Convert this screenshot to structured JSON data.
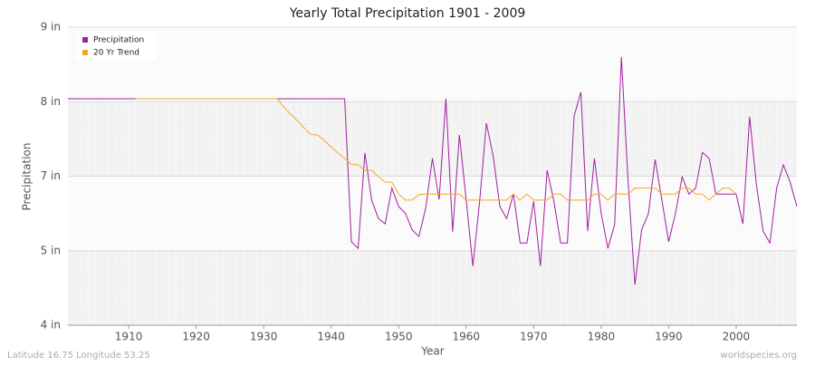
{
  "chart_data": {
    "type": "line",
    "title": "Yearly Total Precipitation 1901 - 2009",
    "x_label": "Year",
    "y_label": "Precipitation",
    "footer_left": "Latitude 16.75 Longitude 53.25",
    "footer_right": "worldspecies.org",
    "x": [
      1901,
      1902,
      1903,
      1904,
      1905,
      1906,
      1907,
      1908,
      1909,
      1910,
      1911,
      1912,
      1913,
      1914,
      1915,
      1916,
      1917,
      1918,
      1919,
      1920,
      1921,
      1922,
      1923,
      1924,
      1925,
      1926,
      1927,
      1928,
      1929,
      1930,
      1931,
      1932,
      1933,
      1934,
      1935,
      1936,
      1937,
      1938,
      1939,
      1940,
      1941,
      1942,
      1943,
      1944,
      1945,
      1946,
      1947,
      1948,
      1949,
      1950,
      1951,
      1952,
      1953,
      1954,
      1955,
      1956,
      1957,
      1958,
      1959,
      1960,
      1961,
      1962,
      1963,
      1964,
      1965,
      1966,
      1967,
      1968,
      1969,
      1970,
      1971,
      1972,
      1973,
      1974,
      1975,
      1976,
      1977,
      1978,
      1979,
      1980,
      1981,
      1982,
      1983,
      1984,
      1985,
      1986,
      1987,
      1988,
      1989,
      1990,
      1991,
      1992,
      1993,
      1994,
      1995,
      1996,
      1997,
      1998,
      1999,
      2000,
      2001,
      2002,
      2003,
      2004,
      2005,
      2006,
      2007,
      2008,
      2009
    ],
    "series": [
      {
        "name": "Precipitation",
        "color": "#a020a0",
        "values": [
          7.8,
          7.8,
          7.8,
          7.8,
          7.8,
          7.8,
          7.8,
          7.8,
          7.8,
          7.8,
          7.8,
          7.8,
          7.8,
          7.8,
          7.8,
          7.8,
          7.8,
          7.8,
          7.8,
          7.8,
          7.8,
          7.8,
          7.8,
          7.8,
          7.8,
          7.8,
          7.8,
          7.8,
          7.8,
          7.8,
          7.8,
          7.8,
          7.8,
          7.8,
          7.8,
          7.8,
          7.8,
          7.8,
          7.8,
          7.8,
          7.8,
          7.8,
          5.4,
          5.29,
          6.89,
          6.1,
          5.79,
          5.7,
          6.3,
          5.99,
          5.88,
          5.6,
          5.49,
          5.96,
          6.8,
          6.11,
          7.8,
          5.57,
          7.19,
          6.11,
          4.99,
          6.08,
          7.39,
          6.84,
          5.99,
          5.79,
          6.2,
          5.38,
          5.38,
          6.08,
          4.99,
          6.6,
          6.08,
          5.38,
          5.38,
          7.51,
          7.91,
          5.58,
          6.8,
          5.88,
          5.29,
          5.69,
          8.5,
          6.4,
          4.68,
          5.6,
          5.87,
          6.78,
          6.1,
          5.4,
          5.87,
          6.49,
          6.2,
          6.3,
          6.9,
          6.8,
          6.2,
          6.2,
          6.2,
          6.2,
          5.7,
          7.5,
          6.36,
          5.58,
          5.38,
          6.3,
          6.69,
          6.4,
          5.99
        ]
      },
      {
        "name": "20 Yr Trend",
        "color": "#f5a623",
        "values": [
          null,
          null,
          null,
          null,
          null,
          null,
          null,
          null,
          null,
          null,
          7.8,
          7.8,
          7.8,
          7.8,
          7.8,
          7.8,
          7.8,
          7.8,
          7.8,
          7.8,
          7.8,
          7.8,
          7.8,
          7.8,
          7.8,
          7.8,
          7.8,
          7.8,
          7.8,
          7.8,
          7.8,
          7.8,
          7.66,
          7.54,
          7.43,
          7.31,
          7.2,
          7.19,
          7.1,
          6.99,
          6.89,
          6.8,
          6.7,
          6.69,
          6.6,
          6.6,
          6.49,
          6.4,
          6.4,
          6.2,
          6.1,
          6.1,
          6.19,
          6.2,
          6.2,
          6.2,
          6.2,
          6.2,
          6.2,
          6.1,
          6.1,
          6.1,
          6.1,
          6.1,
          6.1,
          6.1,
          6.2,
          6.1,
          6.2,
          6.1,
          6.1,
          6.1,
          6.2,
          6.2,
          6.1,
          6.1,
          6.1,
          6.1,
          6.2,
          6.2,
          6.1,
          6.2,
          6.2,
          6.2,
          6.3,
          6.3,
          6.3,
          6.3,
          6.2,
          6.2,
          6.2,
          6.3,
          6.3,
          6.2,
          6.2,
          6.1,
          6.2,
          6.3,
          6.3,
          6.2,
          null,
          null,
          null,
          null,
          null,
          null,
          null,
          null,
          null
        ]
      }
    ],
    "xlim": [
      1901,
      2009
    ],
    "xticks": [
      1910,
      1920,
      1930,
      1940,
      1950,
      1960,
      1970,
      1980,
      1990,
      2000
    ],
    "ylim": [
      4,
      9
    ],
    "yticks": [
      {
        "value": 4,
        "label": "4 in"
      },
      {
        "value": 5.25,
        "label": "5 in"
      },
      {
        "value": 6.5,
        "label": "7 in"
      },
      {
        "value": 7.75,
        "label": "8 in"
      },
      {
        "value": 9,
        "label": "9 in"
      }
    ],
    "grid": true,
    "legend": "top-left"
  }
}
